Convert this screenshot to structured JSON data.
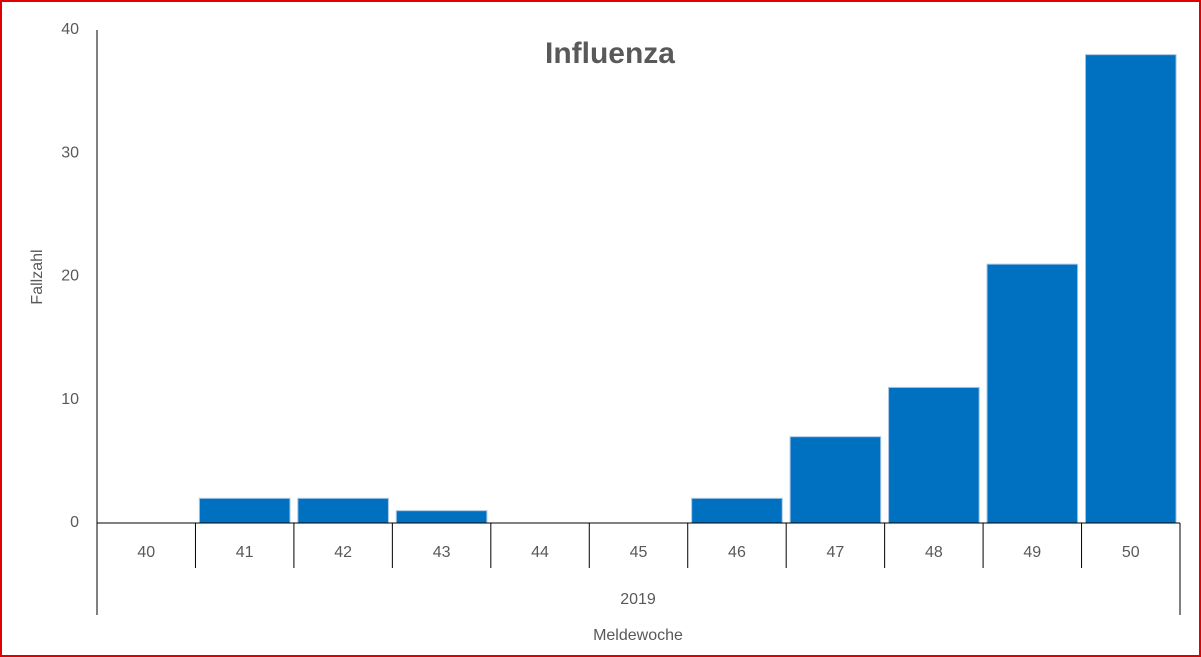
{
  "chart_data": {
    "type": "bar",
    "title": "Influenza",
    "categories": [
      "40",
      "41",
      "42",
      "43",
      "44",
      "45",
      "46",
      "47",
      "48",
      "49",
      "50"
    ],
    "values": [
      0,
      2,
      2,
      1,
      0,
      0,
      2,
      7,
      11,
      21,
      38
    ],
    "color": "#0070c0",
    "x_group_label": "2019",
    "x_label": "Meldewoche",
    "y_label": "Fallzahl",
    "ylim": [
      0,
      40
    ],
    "yticks": [
      0,
      10,
      20,
      30,
      40
    ],
    "grid": false
  }
}
